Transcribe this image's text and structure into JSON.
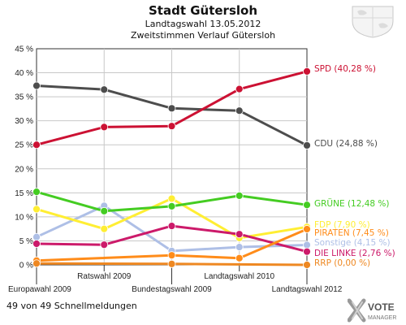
{
  "header": {
    "title": "Stadt Gütersloh",
    "subtitle": "Landtagswahl 13.05.2012",
    "subtitle2": "Zweitstimmen Verlauf Gütersloh"
  },
  "footer": {
    "status": "49 von 49 Schnellmeldungen"
  },
  "logo": {
    "line1": "VOTE",
    "line2": "MANAGER"
  },
  "chart_data": {
    "type": "line",
    "x": [
      "Europawahl 2009",
      "Ratswahl 2009",
      "Bundestagswahl 2009",
      "Landtagswahl 2010",
      "Landtagswahl 2012"
    ],
    "ylim": [
      0,
      45
    ],
    "yticks": [
      "0 %",
      "5 %",
      "10 %",
      "15 %",
      "20 %",
      "25 %",
      "30 %",
      "35 %",
      "40 %",
      "45 %"
    ],
    "grid": true,
    "series": [
      {
        "name": "Sonstige",
        "end_label": "Sonstige (4,15 %)",
        "color": "#aebfe6",
        "values": [
          5.8,
          12.3,
          2.9,
          3.7,
          4.15
        ]
      },
      {
        "name": "FDP",
        "end_label": "FDP (7,90 %)",
        "color": "#ffee33",
        "values": [
          11.6,
          7.5,
          13.8,
          5.6,
          7.9
        ]
      },
      {
        "name": "DIE LINKE",
        "end_label": "DIE LINKE (2,76 %)",
        "color": "#cc1a6a",
        "values": [
          4.4,
          4.2,
          8.1,
          6.4,
          2.76
        ]
      },
      {
        "name": "PIRATEN",
        "end_label": "PIRATEN (7,45 %)",
        "color": "#ff8c1a",
        "values": [
          0.9,
          null,
          2.0,
          1.4,
          7.45
        ]
      },
      {
        "name": "RRP",
        "end_label": "RRP (0,00 %)",
        "color": "#ee8822",
        "values": [
          0.3,
          null,
          0.2,
          null,
          0.0
        ]
      },
      {
        "name": "GRÜNE",
        "end_label": "GRÜNE (12,48 %)",
        "color": "#44cc22",
        "values": [
          15.2,
          11.2,
          12.2,
          14.4,
          12.48
        ]
      },
      {
        "name": "CDU",
        "end_label": "CDU (24,88 %)",
        "color": "#4d4d4d",
        "values": [
          37.3,
          36.5,
          32.6,
          32.1,
          24.88
        ]
      },
      {
        "name": "SPD",
        "end_label": "SPD (40,28 %)",
        "color": "#cc1133",
        "values": [
          25.0,
          28.7,
          28.9,
          36.6,
          40.28
        ]
      }
    ]
  }
}
